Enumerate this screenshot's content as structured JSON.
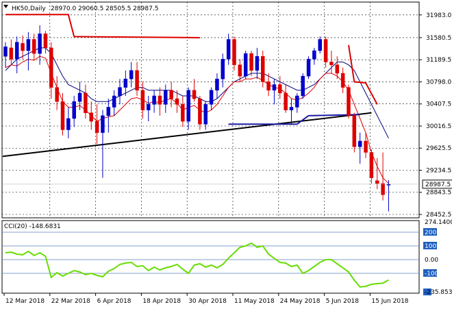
{
  "chart_data": [
    {
      "type": "candlestick",
      "symbol_header": "HK50,Daily",
      "ohlc_header": "28970.0 29060.5 28505.5 28987.5",
      "y_ticks": [
        "31983.0",
        "31580.5",
        "31189.5",
        "30798.0",
        "30407.5",
        "30016.5",
        "29625.5",
        "29234.5",
        "28843.5",
        "28452.5"
      ],
      "y_values": [
        31983.0,
        31580.5,
        31189.5,
        30798.0,
        30407.5,
        30016.5,
        29625.5,
        29234.5,
        28843.5,
        28452.5
      ],
      "ylim": [
        28452.5,
        32150
      ],
      "current_price_label": "28987.5",
      "current_price": 28987.5,
      "x_labels": [
        "12 Mar 2018",
        "22 Mar 2018",
        "6 Apr 2018",
        "18 Apr 2018",
        "30 Apr 2018",
        "11 May 2018",
        "24 May 2018",
        "5 Jun 2018",
        "15 Jun 2018"
      ],
      "x_label_positions": [
        0,
        8,
        16,
        24,
        32,
        40,
        48,
        56,
        64
      ],
      "colors": {
        "up": "#0000cc",
        "down": "#dd0000",
        "ma_fast": "#dd0000",
        "ma_slow": "#000080",
        "trendline": "#000000",
        "level_line": "#1a1aa6",
        "red_level": "#dd0000"
      },
      "candles": [
        [
          31250,
          31500,
          31050,
          31420
        ],
        [
          31400,
          31550,
          31100,
          31200
        ],
        [
          31200,
          31600,
          30950,
          31500
        ],
        [
          31480,
          31620,
          31200,
          31350
        ],
        [
          31350,
          31680,
          31000,
          31550
        ],
        [
          31550,
          31650,
          31200,
          31300
        ],
        [
          31300,
          31800,
          31100,
          31650
        ],
        [
          31650,
          31700,
          31300,
          31400
        ],
        [
          31400,
          31500,
          30500,
          30700
        ],
        [
          30700,
          30900,
          30300,
          30450
        ],
        [
          30450,
          30600,
          29850,
          29950
        ],
        [
          29950,
          30350,
          29800,
          30150
        ],
        [
          30150,
          30550,
          30000,
          30450
        ],
        [
          30450,
          30800,
          30300,
          30600
        ],
        [
          30600,
          30750,
          30150,
          30250
        ],
        [
          30250,
          30450,
          29950,
          30100
        ],
        [
          30100,
          30400,
          29700,
          29900
        ],
        [
          29900,
          30300,
          29100,
          30200
        ],
        [
          30200,
          30500,
          29900,
          30350
        ],
        [
          30350,
          30650,
          30200,
          30550
        ],
        [
          30550,
          30850,
          30400,
          30700
        ],
        [
          30700,
          31000,
          30550,
          30850
        ],
        [
          30850,
          31150,
          30700,
          31000
        ],
        [
          31000,
          31150,
          30550,
          30650
        ],
        [
          30650,
          30800,
          30150,
          30300
        ],
        [
          30300,
          30550,
          30100,
          30400
        ],
        [
          30400,
          30650,
          30250,
          30550
        ],
        [
          30550,
          30700,
          30200,
          30400
        ],
        [
          30400,
          30750,
          30250,
          30650
        ],
        [
          30650,
          30800,
          30350,
          30500
        ],
        [
          30500,
          30650,
          30250,
          30400
        ],
        [
          30400,
          30550,
          30000,
          30100
        ],
        [
          30100,
          30700,
          29950,
          30650
        ],
        [
          30650,
          30850,
          30450,
          30500
        ],
        [
          30500,
          30550,
          29950,
          30050
        ],
        [
          30050,
          30450,
          29950,
          30400
        ],
        [
          30400,
          30700,
          30300,
          30650
        ],
        [
          30650,
          30950,
          30500,
          30850
        ],
        [
          30850,
          31300,
          30700,
          31200
        ],
        [
          31200,
          31650,
          31100,
          31550
        ],
        [
          31550,
          31600,
          31000,
          31100
        ],
        [
          31100,
          31200,
          30800,
          30900
        ],
        [
          30900,
          31350,
          30850,
          31300
        ],
        [
          31300,
          31350,
          30900,
          31000
        ],
        [
          31000,
          31400,
          30850,
          31250
        ],
        [
          31250,
          31350,
          30700,
          30800
        ],
        [
          30800,
          30950,
          30550,
          30650
        ],
        [
          30650,
          30850,
          30400,
          30750
        ],
        [
          30750,
          30900,
          30500,
          30600
        ],
        [
          30600,
          30750,
          30250,
          30300
        ],
        [
          30300,
          30500,
          30050,
          30350
        ],
        [
          30350,
          30600,
          30250,
          30550
        ],
        [
          30550,
          30950,
          30500,
          30900
        ],
        [
          30900,
          31250,
          30850,
          31200
        ],
        [
          31200,
          31400,
          31100,
          31350
        ],
        [
          31350,
          31600,
          31300,
          31550
        ],
        [
          31550,
          31600,
          31050,
          31150
        ],
        [
          31150,
          31350,
          30950,
          31100
        ],
        [
          31100,
          31250,
          30850,
          30950
        ],
        [
          30950,
          31050,
          30600,
          30700
        ],
        [
          30700,
          30750,
          30150,
          30200
        ],
        [
          30200,
          30250,
          29550,
          29650
        ],
        [
          29650,
          29900,
          29350,
          29750
        ],
        [
          29750,
          29900,
          29450,
          29550
        ],
        [
          29550,
          29600,
          29000,
          29100
        ],
        [
          29050,
          29450,
          28900,
          29000
        ],
        [
          29000,
          29550,
          28700,
          28800
        ],
        [
          28970,
          29060.5,
          28505.5,
          28987.5
        ]
      ],
      "trendline_values": [
        29480,
        30250
      ],
      "level_line_value": 30050,
      "red_level_points": [
        [
          0,
          31990
        ],
        [
          11,
          31990
        ],
        [
          12,
          31600
        ],
        [
          34,
          31580
        ]
      ],
      "red_level_points_2": [
        [
          60,
          31450
        ],
        [
          61,
          30800
        ],
        [
          63,
          30780
        ],
        [
          65,
          30400
        ]
      ],
      "ma_fast": [
        31050,
        31100,
        31080,
        31150,
        31200,
        31180,
        31250,
        31220,
        30950,
        30700,
        30450,
        30350,
        30350,
        30380,
        30300,
        30200,
        30100,
        30150,
        30180,
        30200,
        30300,
        30400,
        30500,
        30520,
        30480,
        30420,
        30450,
        30430,
        30480,
        30500,
        30420,
        30300,
        30350,
        30380,
        30300,
        30250,
        30300,
        30400,
        30550,
        30700,
        30800,
        30800,
        30850,
        30850,
        30880,
        30820,
        30750,
        30700,
        30680,
        30600,
        30500,
        30480,
        30520,
        30600,
        30700,
        30850,
        30950,
        30950,
        30900,
        30800,
        30650,
        30400,
        30150,
        29900,
        29550,
        29300,
        29100,
        29000
      ],
      "ma_slow": [
        31000,
        31100,
        31200,
        31250,
        31300,
        31350,
        31400,
        31400,
        31300,
        31100,
        30900,
        30750,
        30700,
        30650,
        30600,
        30500,
        30450,
        30450,
        30450,
        30500,
        30550,
        30600,
        30650,
        30700,
        30700,
        30650,
        30650,
        30650,
        30650,
        30650,
        30600,
        30550,
        30550,
        30550,
        30500,
        30450,
        30450,
        30500,
        30600,
        30700,
        30800,
        30850,
        30900,
        30950,
        30950,
        30950,
        30900,
        30850,
        30800,
        30750,
        30700,
        30650,
        30650,
        30700,
        30750,
        30850,
        30950,
        31050,
        31150,
        31150,
        31100,
        31000,
        30800,
        30600,
        30400,
        30200,
        30000,
        29800
      ],
      "cci_header": "CCI(20) -148.6831",
      "cci_ticks": [
        "274.1400",
        "200",
        "100",
        "0.00",
        "-100",
        "-235.8531"
      ],
      "cci_levels": [
        274.14,
        200,
        100,
        0,
        -100,
        -235.85
      ],
      "cci_ylim": [
        -245,
        285
      ],
      "cci_values": [
        50,
        55,
        40,
        35,
        60,
        30,
        50,
        25,
        -130,
        -95,
        -120,
        -100,
        -80,
        -90,
        -110,
        -100,
        -115,
        -125,
        -85,
        -65,
        -35,
        -25,
        -20,
        -50,
        -45,
        -80,
        -55,
        -75,
        -60,
        -50,
        -35,
        -70,
        -100,
        -40,
        -30,
        -55,
        -40,
        -60,
        -35,
        10,
        50,
        90,
        100,
        120,
        90,
        100,
        40,
        10,
        -20,
        -25,
        -50,
        -40,
        -100,
        -80,
        -50,
        -20,
        0,
        0,
        -30,
        -60,
        -90,
        -150,
        -200,
        -195,
        -180,
        -175,
        -172,
        -148.68
      ]
    }
  ]
}
